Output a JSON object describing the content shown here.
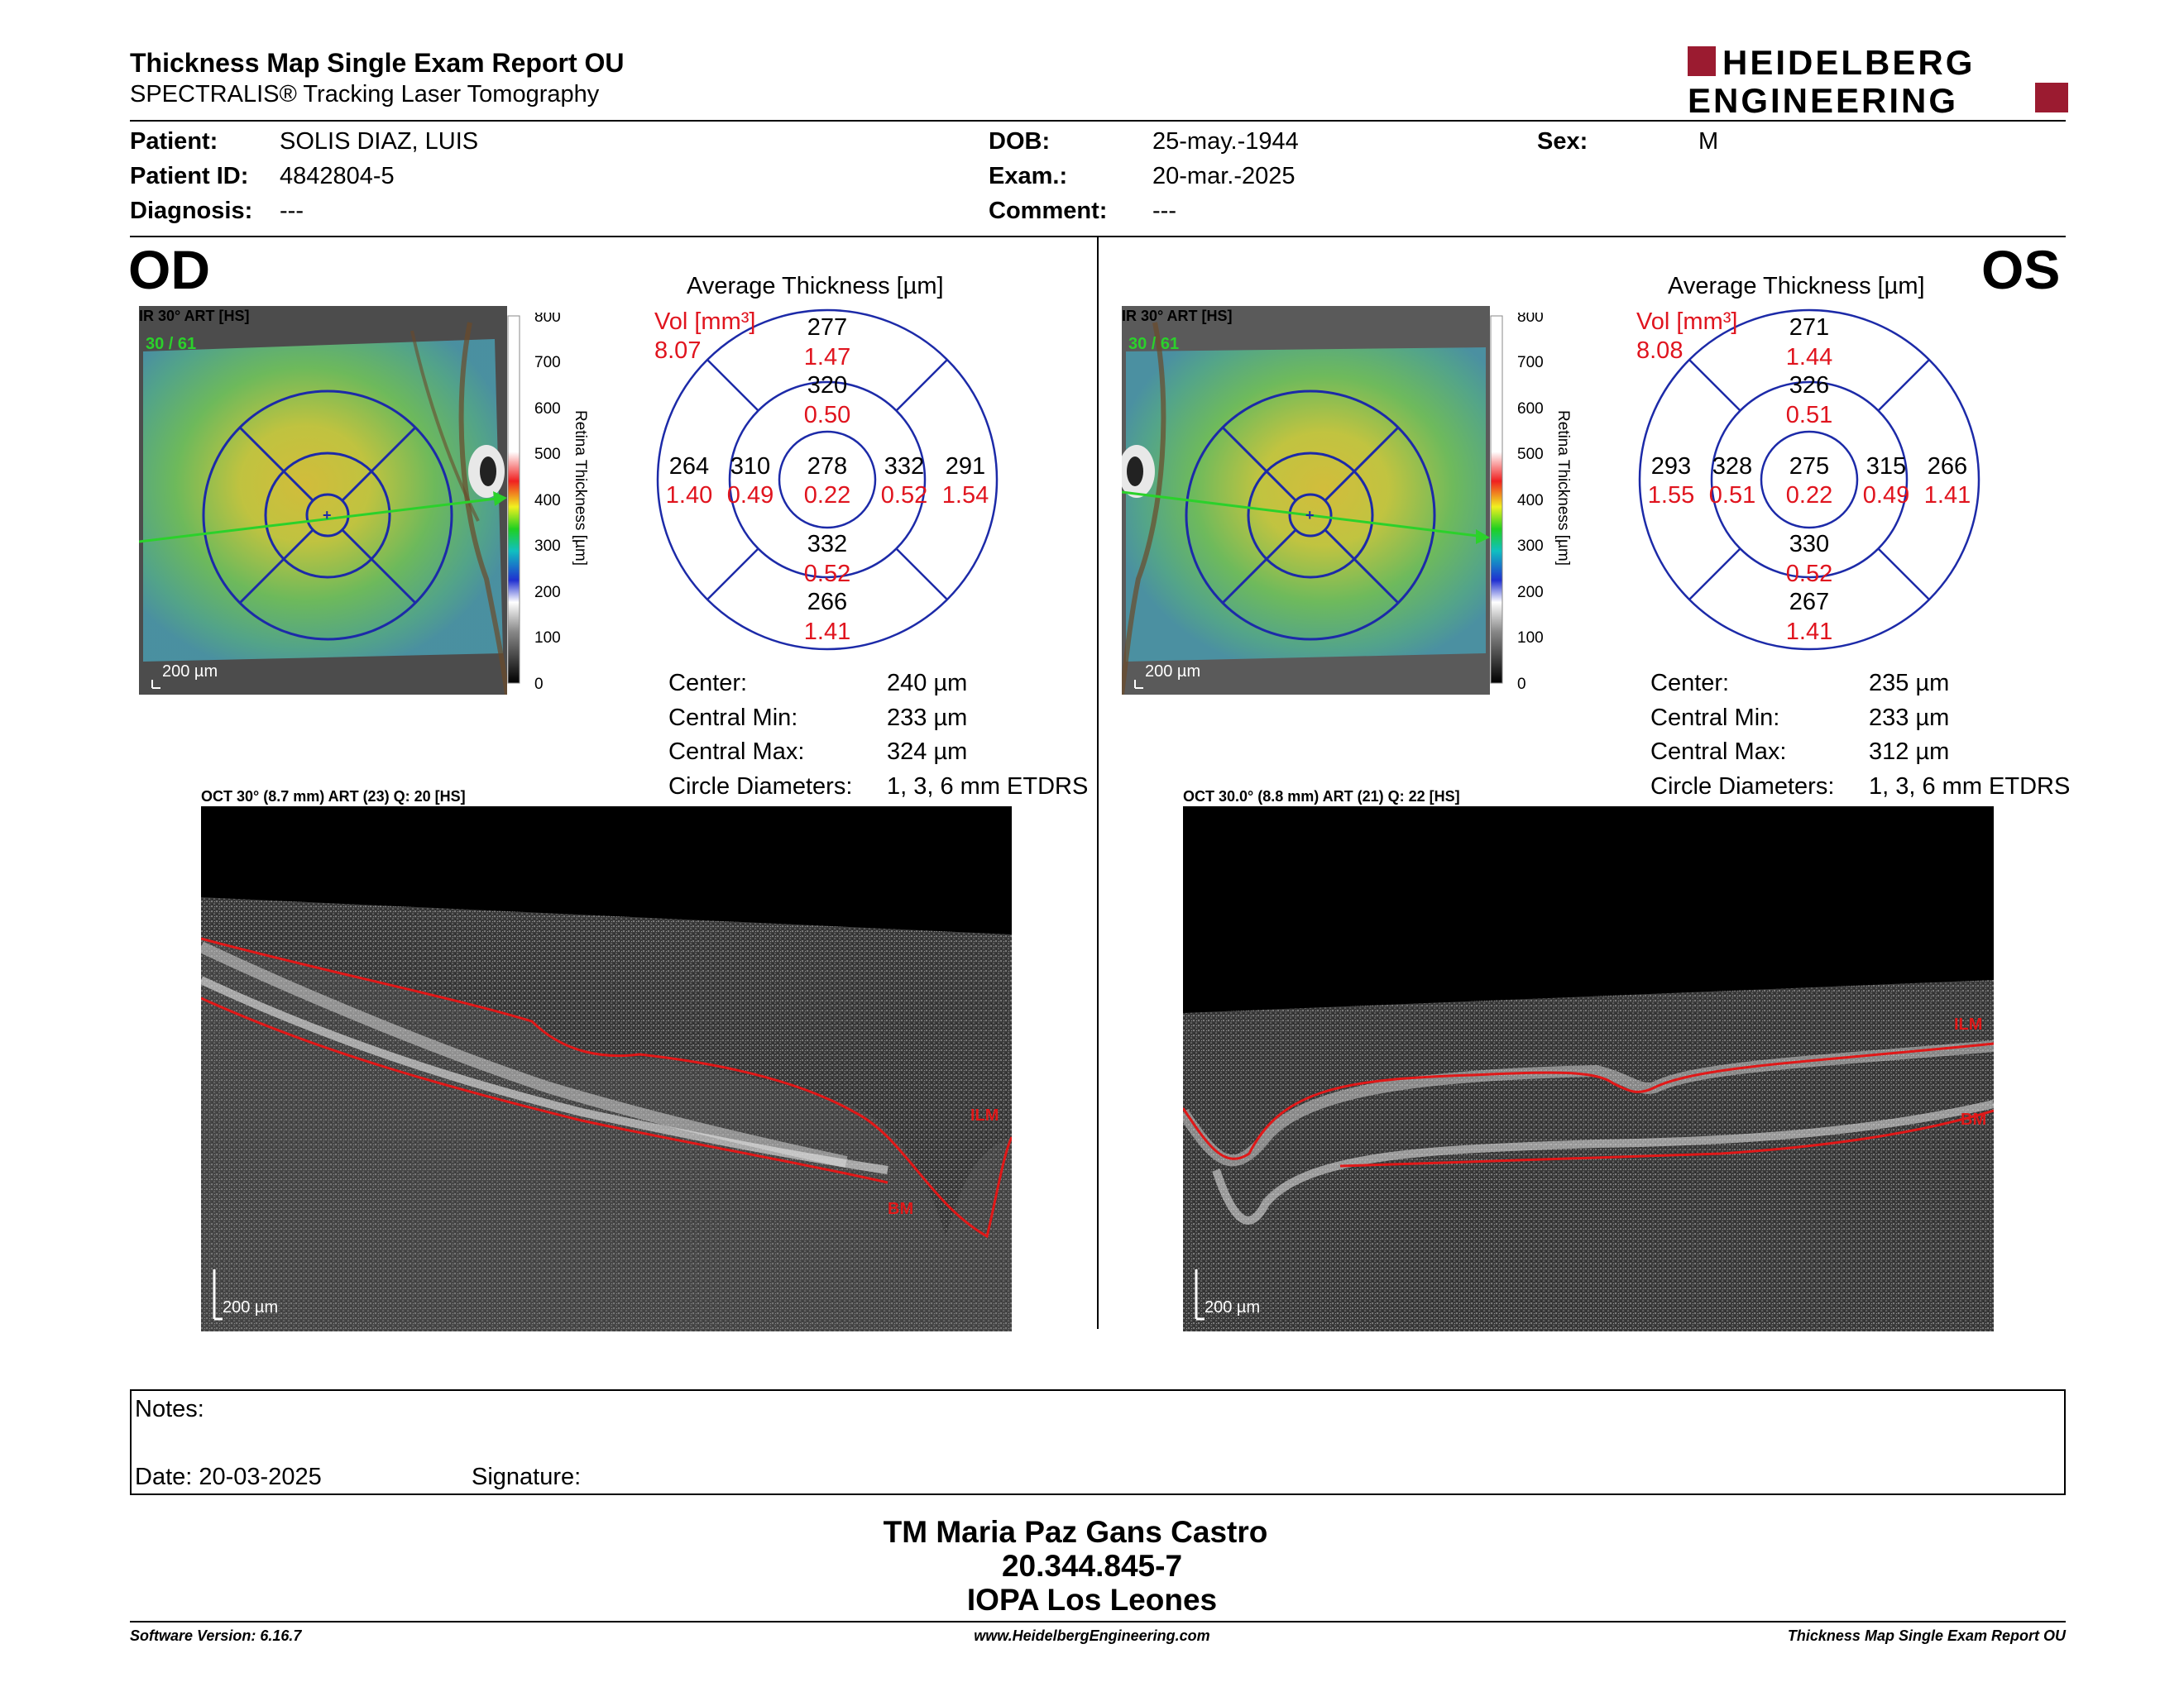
{
  "header": {
    "title": "Thickness Map Single Exam Report OU",
    "subtitle": "SPECTRALIS® Tracking Laser Tomography",
    "logo_line1": "HEIDELBERG",
    "logo_line2": "ENGINEERING"
  },
  "patient": {
    "patient_label": "Patient:",
    "patient_value": "SOLIS DIAZ, LUIS",
    "id_label": "Patient ID:",
    "id_value": "4842804-5",
    "diagnosis_label": "Diagnosis:",
    "diagnosis_value": "---",
    "dob_label": "DOB:",
    "dob_value": "25-may.-1944",
    "exam_label": "Exam.:",
    "exam_value": "20-mar.-2025",
    "comment_label": "Comment:",
    "comment_value": "---",
    "sex_label": "Sex:",
    "sex_value": "M"
  },
  "od": {
    "eye": "OD",
    "ir_label": "IR 30° ART [HS]",
    "ir_counter": "30 / 61",
    "scale_label": "200 µm",
    "colorbar_ticks": [
      "800",
      "700",
      "600",
      "500",
      "400",
      "300",
      "200",
      "100",
      "0"
    ],
    "colorbar_title": "Retina Thickness [µm]",
    "avg_title": "Average Thickness [µm]",
    "vol_label": "Vol [mm³]",
    "vol_value": "8.07",
    "grid": {
      "top_outer": [
        "277",
        "1.47"
      ],
      "top_inner": [
        "320",
        "0.50"
      ],
      "left_outer": [
        "264",
        "1.40"
      ],
      "left_inner": [
        "310",
        "0.49"
      ],
      "center": [
        "278",
        "0.22"
      ],
      "right_inner": [
        "332",
        "0.52"
      ],
      "right_outer": [
        "291",
        "1.54"
      ],
      "bottom_inner": [
        "332",
        "0.52"
      ],
      "bottom_outer": [
        "266",
        "1.41"
      ]
    },
    "stats": {
      "center_label": "Center:",
      "center_value": "240 µm",
      "min_label": "Central Min:",
      "min_value": "233 µm",
      "max_label": "Central Max:",
      "max_value": "324 µm",
      "diam_label": "Circle Diameters:",
      "diam_value": "1, 3, 6 mm ETDRS"
    },
    "oct_label": "OCT 30° (8.7 mm) ART (23) Q: 20 [HS]",
    "oct_ilm": "ILM",
    "oct_bm": "BM",
    "oct_scale": "200 µm"
  },
  "os": {
    "eye": "OS",
    "ir_label": "IR 30° ART [HS]",
    "ir_counter": "30 / 61",
    "scale_label": "200 µm",
    "colorbar_ticks": [
      "800",
      "700",
      "600",
      "500",
      "400",
      "300",
      "200",
      "100",
      "0"
    ],
    "colorbar_title": "Retina Thickness [µm]",
    "avg_title": "Average Thickness [µm]",
    "vol_label": "Vol [mm³]",
    "vol_value": "8.08",
    "grid": {
      "top_outer": [
        "271",
        "1.44"
      ],
      "top_inner": [
        "326",
        "0.51"
      ],
      "left_outer": [
        "293",
        "1.55"
      ],
      "left_inner": [
        "328",
        "0.51"
      ],
      "center": [
        "275",
        "0.22"
      ],
      "right_inner": [
        "315",
        "0.49"
      ],
      "right_outer": [
        "266",
        "1.41"
      ],
      "bottom_inner": [
        "330",
        "0.52"
      ],
      "bottom_outer": [
        "267",
        "1.41"
      ]
    },
    "stats": {
      "center_label": "Center:",
      "center_value": "235 µm",
      "min_label": "Central Min:",
      "min_value": "233 µm",
      "max_label": "Central Max:",
      "max_value": "312 µm",
      "diam_label": "Circle Diameters:",
      "diam_value": "1, 3, 6 mm ETDRS"
    },
    "oct_label": "OCT 30.0° (8.8 mm) ART (21) Q: 22 [HS]",
    "oct_ilm": "ILM",
    "oct_bm": "BM",
    "oct_scale": "200 µm"
  },
  "notes": {
    "notes_label": "Notes:",
    "date_label": "Date: 20-03-2025",
    "signature_label": "Signature:"
  },
  "signature_block": {
    "name": "TM Maria Paz Gans Castro",
    "id": "20.344.845-7",
    "org": "IOPA Los Leones"
  },
  "footer": {
    "version": "Software Version: 6.16.7",
    "url": "www.HeidelbergEngineering.com",
    "report": "Thickness Map Single Exam Report OU"
  },
  "colors": {
    "logo_red": "#9b1b30",
    "etdrs_blue": "#1c2aa8",
    "vol_red": "#e0141e",
    "segmentation_red": "#e01818",
    "arrow_green": "#2bd12b"
  }
}
